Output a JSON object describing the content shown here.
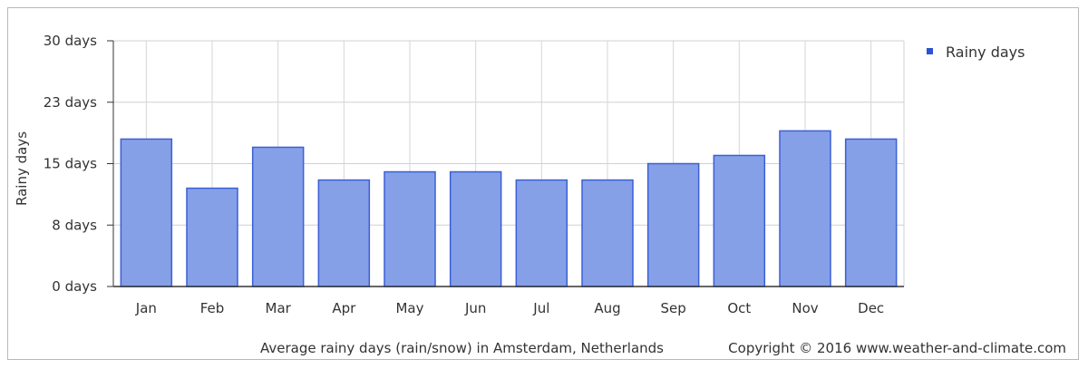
{
  "chart_data": {
    "type": "bar",
    "categories": [
      "Jan",
      "Feb",
      "Mar",
      "Apr",
      "May",
      "Jun",
      "Jul",
      "Aug",
      "Sep",
      "Oct",
      "Nov",
      "Dec"
    ],
    "series": [
      {
        "name": "Rainy days",
        "values": [
          18,
          12,
          17,
          13,
          14,
          14,
          13,
          13,
          15,
          16,
          19,
          18
        ]
      }
    ],
    "ylabel": "Rainy days",
    "yticks": [
      "0 days",
      "8 days",
      "15 days",
      "23 days",
      "30 days"
    ],
    "ylim": [
      0,
      30
    ],
    "grid": true,
    "legend_position": "top-right",
    "bar_fill": "#86a0e8",
    "bar_stroke": "#3b5fd6",
    "legend_color": "#2b53d4",
    "caption": "Average rainy days (rain/snow) in Amsterdam, Netherlands",
    "copyright": "Copyright © 2016 www.weather-and-climate.com"
  }
}
